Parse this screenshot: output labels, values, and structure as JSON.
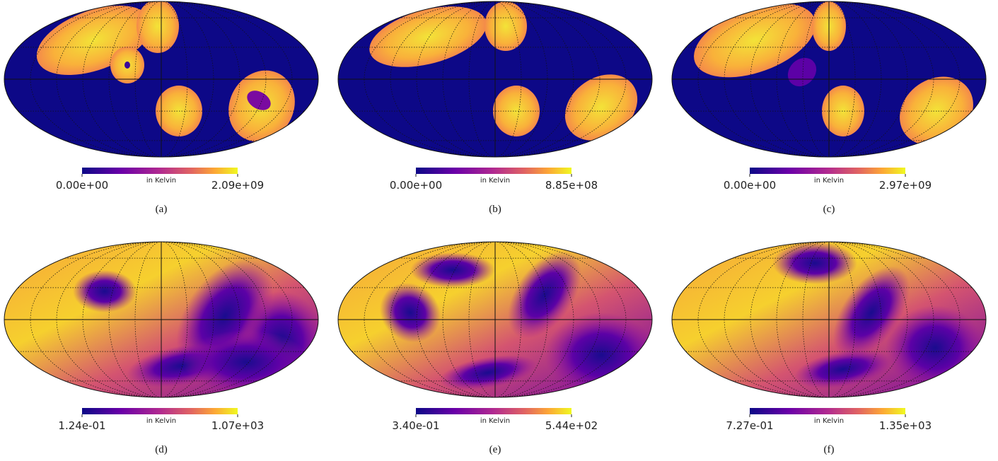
{
  "panels": [
    {
      "caption": "(a)",
      "cbar_min": "0.00e+00",
      "cbar_max": "2.09e+09",
      "unit": "in Kelvin"
    },
    {
      "caption": "(b)",
      "cbar_min": "0.00e+00",
      "cbar_max": "8.85e+08",
      "unit": "in Kelvin"
    },
    {
      "caption": "(c)",
      "cbar_min": "0.00e+00",
      "cbar_max": "2.97e+09",
      "unit": "in Kelvin"
    },
    {
      "caption": "(d)",
      "cbar_min": "1.24e-01",
      "cbar_max": "1.07e+03",
      "unit": "in Kelvin"
    },
    {
      "caption": "(e)",
      "cbar_min": "3.40e-01",
      "cbar_max": "5.44e+02",
      "unit": "in Kelvin"
    },
    {
      "caption": "(f)",
      "cbar_min": "7.27e-01",
      "cbar_max": "1.35e+03",
      "unit": "in Kelvin"
    }
  ]
}
